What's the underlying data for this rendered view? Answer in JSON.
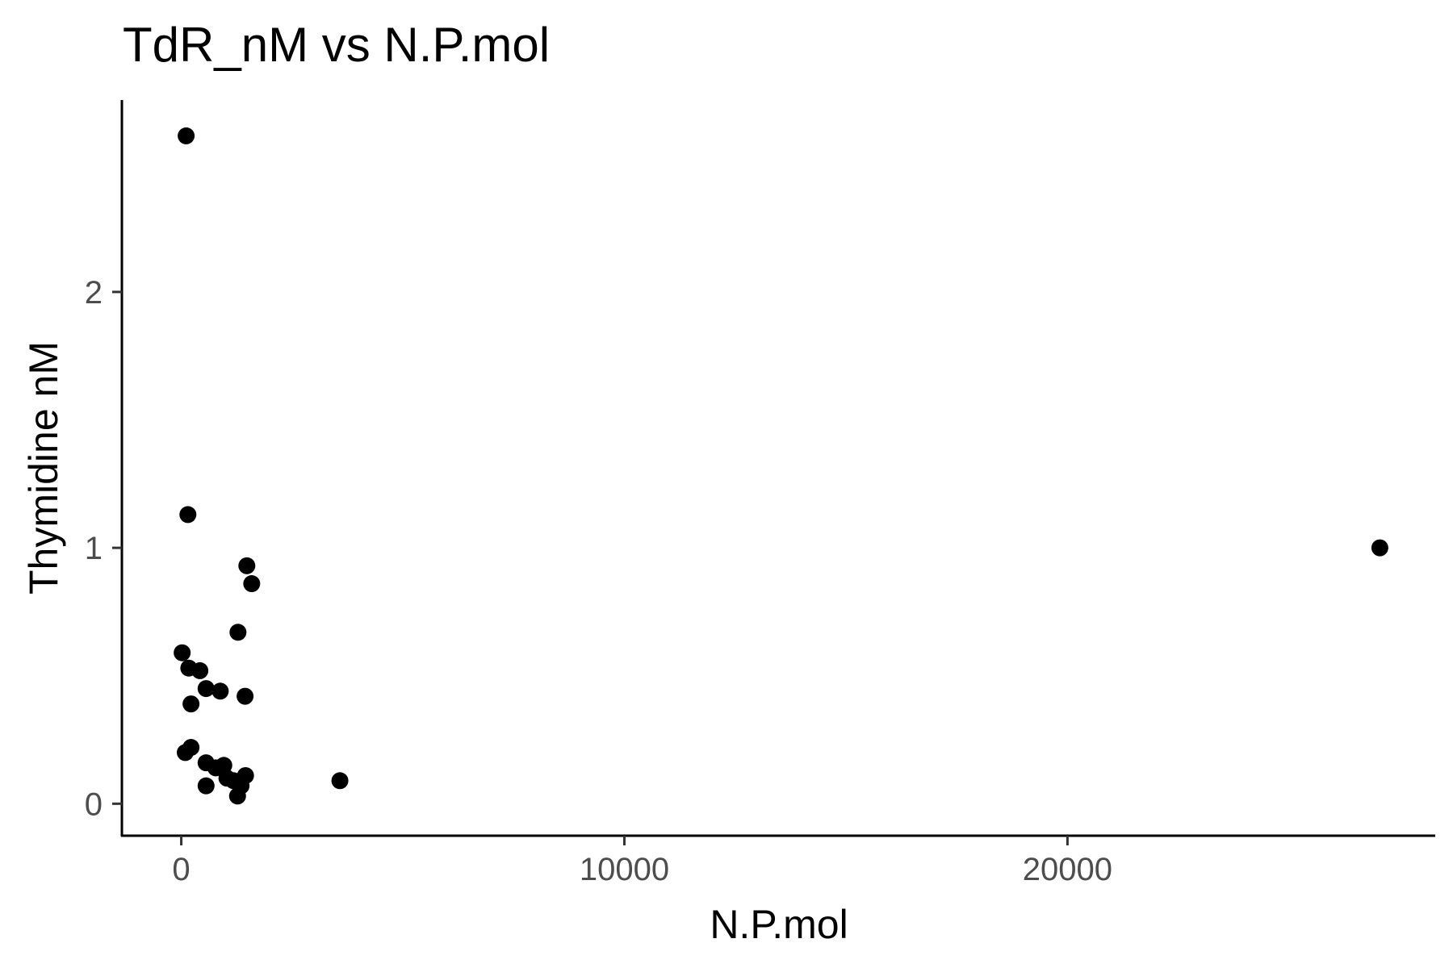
{
  "chart_data": {
    "type": "scatter",
    "title": "TdR_nM vs N.P.mol",
    "xlabel": "N.P.mol",
    "ylabel": "Thymidine nM",
    "xlim": [
      -1340,
      28300
    ],
    "ylim": [
      -0.125,
      2.75
    ],
    "x_ticks": [
      0,
      10000,
      20000
    ],
    "x_tick_labels": [
      "0",
      "10000",
      "20000"
    ],
    "y_ticks": [
      0,
      1,
      2
    ],
    "y_tick_labels": [
      "0",
      "1",
      "2"
    ],
    "grid": false,
    "legend": "none",
    "point_color": "#000000",
    "points": [
      {
        "x": 110,
        "y": 2.61
      },
      {
        "x": 150,
        "y": 1.13
      },
      {
        "x": 1480,
        "y": 0.93
      },
      {
        "x": 1590,
        "y": 0.86
      },
      {
        "x": 1280,
        "y": 0.67
      },
      {
        "x": 20,
        "y": 0.59
      },
      {
        "x": 170,
        "y": 0.53
      },
      {
        "x": 420,
        "y": 0.52
      },
      {
        "x": 560,
        "y": 0.45
      },
      {
        "x": 880,
        "y": 0.44
      },
      {
        "x": 1440,
        "y": 0.42
      },
      {
        "x": 220,
        "y": 0.39
      },
      {
        "x": 220,
        "y": 0.22
      },
      {
        "x": 90,
        "y": 0.2
      },
      {
        "x": 560,
        "y": 0.16
      },
      {
        "x": 780,
        "y": 0.14
      },
      {
        "x": 960,
        "y": 0.15
      },
      {
        "x": 1030,
        "y": 0.1
      },
      {
        "x": 1180,
        "y": 0.09
      },
      {
        "x": 1450,
        "y": 0.11
      },
      {
        "x": 1350,
        "y": 0.07
      },
      {
        "x": 560,
        "y": 0.07
      },
      {
        "x": 1270,
        "y": 0.03
      },
      {
        "x": 3580,
        "y": 0.09
      },
      {
        "x": 27050,
        "y": 1.0
      }
    ]
  }
}
